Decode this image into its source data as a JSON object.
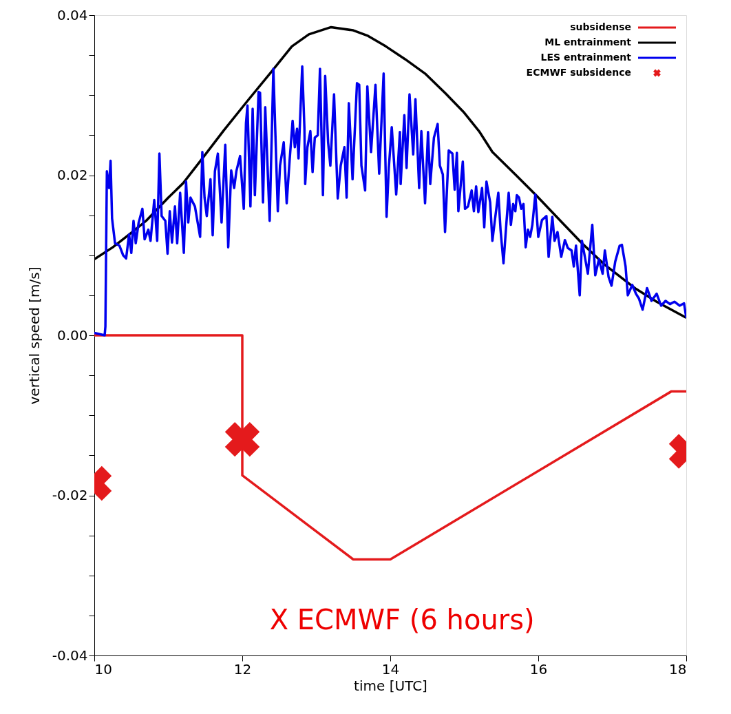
{
  "chart_data": {
    "type": "line",
    "xlabel": "time [UTC]",
    "ylabel": "vertical speed [m/s]",
    "xlim": [
      10,
      18
    ],
    "xticks": [
      10,
      12,
      14,
      16,
      18
    ],
    "ylim": [
      -0.04,
      0.04
    ],
    "yticks": [
      {
        "value": -0.04,
        "label": "-0.04"
      },
      {
        "value": -0.035,
        "label": null
      },
      {
        "value": -0.03,
        "label": null
      },
      {
        "value": -0.025,
        "label": null
      },
      {
        "value": -0.02,
        "label": "-0.02"
      },
      {
        "value": -0.015,
        "label": null
      },
      {
        "value": -0.01,
        "label": null
      },
      {
        "value": -0.005,
        "label": null
      },
      {
        "value": 0,
        "label": "0.00"
      },
      {
        "value": 0.005,
        "label": null
      },
      {
        "value": 0.01,
        "label": null
      },
      {
        "value": 0.015,
        "label": null
      },
      {
        "value": 0.02,
        "label": "0.02"
      },
      {
        "value": 0.025,
        "label": null
      },
      {
        "value": 0.03,
        "label": null
      },
      {
        "value": 0.035,
        "label": null
      },
      {
        "value": 0.04,
        "label": "0.04"
      }
    ],
    "grid": false,
    "legend": "top right",
    "line_style": "solid",
    "annotations": [
      "X ECMWF (6 hours)"
    ],
    "series": [
      {
        "name": "subsidense",
        "color": "#e41a1c",
        "x": [
          10,
          12,
          12,
          13.5,
          14,
          17.8,
          18
        ],
        "values": [
          0,
          0,
          -0.0175,
          -0.028,
          -0.028,
          -0.007,
          -0.007
        ]
      },
      {
        "name": "ML entrainment",
        "color": "#000000",
        "x": [
          10,
          10.25,
          10.5,
          10.7,
          11.0,
          11.2,
          11.46,
          11.75,
          12.08,
          12.4,
          12.67,
          12.9,
          13.2,
          13.5,
          13.7,
          13.94,
          14.2,
          14.47,
          14.75,
          15.0,
          15.2,
          15.38,
          15.7,
          15.97,
          16.3,
          16.59,
          16.9,
          17.32,
          17.6,
          18
        ],
        "values": [
          0.0095,
          0.011,
          0.0128,
          0.0143,
          0.0172,
          0.019,
          0.0221,
          0.0256,
          0.0294,
          0.033,
          0.0361,
          0.0376,
          0.0385,
          0.0381,
          0.0374,
          0.0361,
          0.0345,
          0.0327,
          0.0302,
          0.0278,
          0.0255,
          0.0229,
          0.02,
          0.0175,
          0.0143,
          0.0115,
          0.0088,
          0.0058,
          0.0042,
          0.0022
        ]
      },
      {
        "name": "LES entrainment",
        "color": "#0000ee",
        "x": [
          10.0,
          10.14,
          10.15,
          10.17,
          10.2,
          10.22,
          10.24,
          10.28,
          10.34,
          10.39,
          10.43,
          10.47,
          10.5,
          10.53,
          10.56,
          10.6,
          10.65,
          10.68,
          10.73,
          10.76,
          10.81,
          10.85,
          10.88,
          10.91,
          10.96,
          10.99,
          11.02,
          11.05,
          11.09,
          11.12,
          11.16,
          11.21,
          11.24,
          11.27,
          11.3,
          11.36,
          11.43,
          11.46,
          11.49,
          11.52,
          11.57,
          11.6,
          11.63,
          11.67,
          11.72,
          11.77,
          11.81,
          11.85,
          11.89,
          11.92,
          11.97,
          12.02,
          12.05,
          12.07,
          12.11,
          12.14,
          12.17,
          12.22,
          12.24,
          12.28,
          12.31,
          12.37,
          12.42,
          12.48,
          12.51,
          12.56,
          12.6,
          12.64,
          12.68,
          12.71,
          12.74,
          12.76,
          12.81,
          12.84,
          12.85,
          12.88,
          12.92,
          12.95,
          12.98,
          13.02,
          13.05,
          13.09,
          13.12,
          13.16,
          13.19,
          13.24,
          13.29,
          13.33,
          13.38,
          13.41,
          13.44,
          13.49,
          13.55,
          13.58,
          13.61,
          13.66,
          13.69,
          13.74,
          13.8,
          13.85,
          13.91,
          13.95,
          13.98,
          14.02,
          14.08,
          14.13,
          14.14,
          14.19,
          14.22,
          14.26,
          14.31,
          14.34,
          14.39,
          14.42,
          14.47,
          14.51,
          14.54,
          14.59,
          14.64,
          14.67,
          14.71,
          14.74,
          14.79,
          14.84,
          14.87,
          14.9,
          14.92,
          14.98,
          15.01,
          15.05,
          15.1,
          15.13,
          15.16,
          15.19,
          15.24,
          15.27,
          15.3,
          15.35,
          15.38,
          15.41,
          15.46,
          15.49,
          15.53,
          15.57,
          15.6,
          15.63,
          15.66,
          15.69,
          15.71,
          15.74,
          15.77,
          15.8,
          15.83,
          15.86,
          15.89,
          15.92,
          15.96,
          16.0,
          16.05,
          16.11,
          16.14,
          16.19,
          16.22,
          16.26,
          16.31,
          16.36,
          16.4,
          16.45,
          16.48,
          16.51,
          16.56,
          16.59,
          16.62,
          16.67,
          16.73,
          16.77,
          16.82,
          16.87,
          16.9,
          16.95,
          16.99,
          17.04,
          17.1,
          17.13,
          17.18,
          17.21,
          17.27,
          17.32,
          17.36,
          17.41,
          17.47,
          17.53,
          17.6,
          17.66,
          17.72,
          17.78,
          17.84,
          17.91,
          17.97,
          18.0
        ],
        "values": [
          0.0003,
          0.0,
          0.0011,
          0.0205,
          0.0184,
          0.0218,
          0.0146,
          0.0115,
          0.0112,
          0.01,
          0.0096,
          0.0126,
          0.0103,
          0.0143,
          0.0115,
          0.0141,
          0.0158,
          0.012,
          0.0132,
          0.0118,
          0.0169,
          0.0118,
          0.0227,
          0.0149,
          0.0143,
          0.0102,
          0.0155,
          0.0116,
          0.0161,
          0.0115,
          0.0178,
          0.0103,
          0.0192,
          0.0141,
          0.0172,
          0.0161,
          0.0123,
          0.0229,
          0.0172,
          0.0149,
          0.0195,
          0.0125,
          0.0205,
          0.0227,
          0.0141,
          0.0238,
          0.011,
          0.0206,
          0.0184,
          0.0205,
          0.0224,
          0.0158,
          0.0265,
          0.0287,
          0.0161,
          0.0283,
          0.0175,
          0.0304,
          0.0303,
          0.0166,
          0.0285,
          0.0143,
          0.0333,
          0.0155,
          0.0212,
          0.0241,
          0.0165,
          0.0219,
          0.0268,
          0.0235,
          0.0258,
          0.0221,
          0.0336,
          0.0258,
          0.0189,
          0.0235,
          0.0255,
          0.0204,
          0.0247,
          0.025,
          0.0333,
          0.0175,
          0.0324,
          0.0241,
          0.0212,
          0.0301,
          0.0171,
          0.0212,
          0.0235,
          0.0172,
          0.029,
          0.0195,
          0.0315,
          0.0313,
          0.0212,
          0.0181,
          0.0311,
          0.0229,
          0.0313,
          0.0202,
          0.0327,
          0.0148,
          0.0209,
          0.026,
          0.0176,
          0.0254,
          0.0189,
          0.0275,
          0.0209,
          0.0301,
          0.0226,
          0.0295,
          0.0184,
          0.0255,
          0.0165,
          0.0254,
          0.0189,
          0.0247,
          0.0264,
          0.0212,
          0.0201,
          0.0129,
          0.0231,
          0.0227,
          0.0182,
          0.0228,
          0.0155,
          0.0217,
          0.0158,
          0.0161,
          0.0181,
          0.0155,
          0.0186,
          0.0154,
          0.0184,
          0.0135,
          0.0192,
          0.0166,
          0.0118,
          0.0141,
          0.0178,
          0.0132,
          0.009,
          0.0141,
          0.0178,
          0.0138,
          0.0164,
          0.0155,
          0.0175,
          0.0172,
          0.0158,
          0.0164,
          0.011,
          0.0132,
          0.0123,
          0.0138,
          0.0176,
          0.0123,
          0.0144,
          0.0149,
          0.0098,
          0.0148,
          0.0118,
          0.0129,
          0.0098,
          0.0119,
          0.0109,
          0.0106,
          0.0086,
          0.0112,
          0.005,
          0.0118,
          0.0103,
          0.0077,
          0.0138,
          0.0075,
          0.0095,
          0.0077,
          0.0106,
          0.0073,
          0.0062,
          0.0092,
          0.0112,
          0.0113,
          0.0086,
          0.005,
          0.0063,
          0.0052,
          0.0046,
          0.0032,
          0.0059,
          0.0043,
          0.0052,
          0.0037,
          0.0043,
          0.0039,
          0.0042,
          0.0037,
          0.004,
          0.0022
        ]
      },
      {
        "name": "ECMWF subsidence",
        "type": "scatter",
        "marker": "cross",
        "color": "#e41a1c",
        "x": [
          10,
          12,
          18
        ],
        "values": [
          -0.0185,
          -0.013,
          -0.0145
        ]
      }
    ]
  }
}
